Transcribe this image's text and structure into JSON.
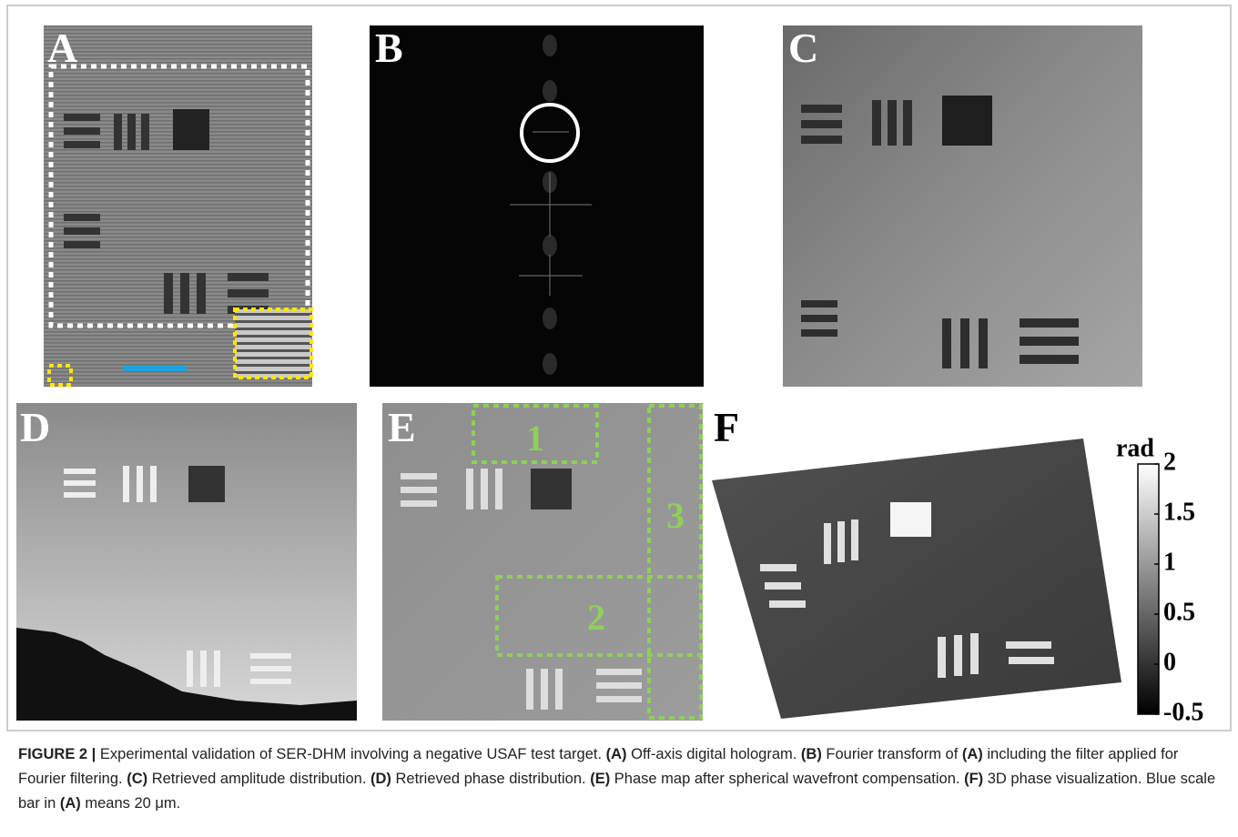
{
  "panels": [
    {
      "label": "A"
    },
    {
      "label": "B"
    },
    {
      "label": "C"
    },
    {
      "label": "D"
    },
    {
      "label": "E"
    },
    {
      "label": "F"
    }
  ],
  "regions": [
    "1",
    "2",
    "3"
  ],
  "colorbar": {
    "label": "rad",
    "lim": [
      -0.5,
      2
    ],
    "ticks": [
      2,
      1.5,
      1,
      0.5,
      0,
      -0.5
    ]
  },
  "caption": [
    {
      "text": "FIGURE 2 |",
      "bold": true
    },
    {
      "text": " Experimental validation of SER-DHM involving a negative USAF test target. "
    },
    {
      "text": "(A)",
      "bold": true
    },
    {
      "text": " Off-axis digital hologram. "
    },
    {
      "text": "(B)",
      "bold": true
    },
    {
      "text": " Fourier transform of "
    },
    {
      "text": "(A)",
      "bold": true
    },
    {
      "text": " including the filter applied for Fourier filtering. "
    },
    {
      "text": "(C)",
      "bold": true
    },
    {
      "text": " Retrieved amplitude distribution. "
    },
    {
      "text": "(D)",
      "bold": true
    },
    {
      "text": " Retrieved phase distribution. "
    },
    {
      "text": "(E)",
      "bold": true
    },
    {
      "text": " Phase map after spherical wavefront compensation. "
    },
    {
      "text": "(F)",
      "bold": true
    },
    {
      "text": " 3D phase visualization. Blue scale bar in "
    },
    {
      "text": "(A)",
      "bold": true
    },
    {
      "text": " means 20 μm."
    }
  ]
}
